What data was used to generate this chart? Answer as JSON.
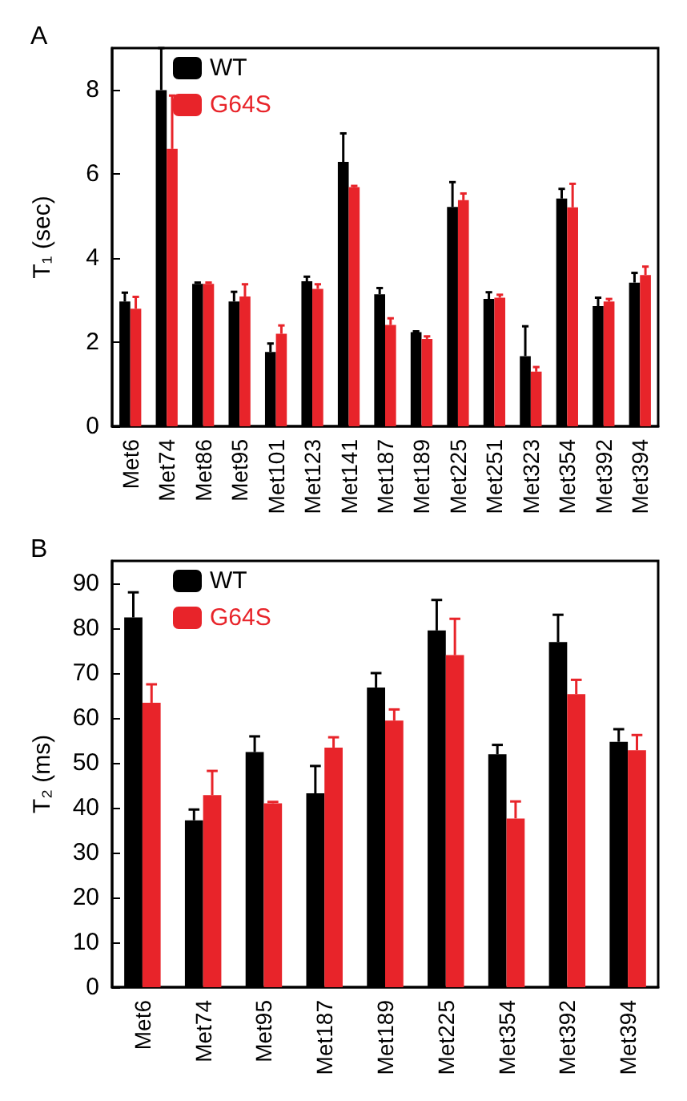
{
  "chart_data": [
    {
      "type": "bar",
      "title": "A",
      "ylabel": "T₁ (sec)",
      "categories": [
        "Met6",
        "Met74",
        "Met86",
        "Met95",
        "Met101",
        "Met123",
        "Met141",
        "Met187",
        "Met189",
        "Met225",
        "Met251",
        "Met323",
        "Met354",
        "Met392",
        "Met394"
      ],
      "series": [
        {
          "name": "WT",
          "color": "#000000",
          "values": [
            2.97,
            8.0,
            3.39,
            2.97,
            1.77,
            3.45,
            6.29,
            3.14,
            2.24,
            5.22,
            3.03,
            1.67,
            5.42,
            2.86,
            3.42
          ],
          "errors": [
            [
              2.97,
              3.18
            ],
            [
              8.0,
              9.0
            ],
            [
              3.39,
              3.42
            ],
            [
              2.97,
              3.2
            ],
            [
              1.77,
              1.97
            ],
            [
              3.45,
              3.56
            ],
            [
              6.29,
              6.97
            ],
            [
              3.14,
              3.29
            ],
            [
              2.24,
              2.26
            ],
            [
              5.22,
              5.81
            ],
            [
              3.03,
              3.19
            ],
            [
              1.67,
              2.38
            ],
            [
              5.42,
              5.65
            ],
            [
              2.86,
              3.06
            ],
            [
              3.42,
              3.65
            ]
          ]
        },
        {
          "name": "G64S",
          "color": "#e8242a",
          "values": [
            2.8,
            6.6,
            3.39,
            3.09,
            2.2,
            3.27,
            5.69,
            2.41,
            2.08,
            5.38,
            3.06,
            1.3,
            5.21,
            2.97,
            3.6
          ],
          "errors": [
            [
              2.8,
              3.08
            ],
            [
              6.6,
              7.87
            ],
            [
              3.39,
              3.42
            ],
            [
              3.09,
              3.38
            ],
            [
              2.2,
              2.4
            ],
            [
              3.27,
              3.38
            ],
            [
              5.69,
              5.72
            ],
            [
              2.41,
              2.57
            ],
            [
              2.08,
              2.14
            ],
            [
              5.38,
              5.54
            ],
            [
              3.06,
              3.13
            ],
            [
              1.3,
              1.41
            ],
            [
              5.21,
              5.77
            ],
            [
              2.97,
              3.03
            ],
            [
              3.6,
              3.8
            ]
          ]
        }
      ],
      "ylim": [
        0,
        9
      ],
      "yticks": [
        0,
        2,
        4,
        6,
        8
      ],
      "grid": false,
      "legend": "top left"
    },
    {
      "type": "bar",
      "title": "B",
      "ylabel": "T₂ (ms)",
      "categories": [
        "Met6",
        "Met74",
        "Met95",
        "Met187",
        "Met189",
        "Met225",
        "Met354",
        "Met392",
        "Met394"
      ],
      "series": [
        {
          "name": "WT",
          "color": "#000000",
          "values": [
            82.4,
            37.2,
            52.4,
            43.2,
            66.8,
            79.5,
            51.9,
            76.9,
            54.7
          ],
          "errors": [
            [
              82.4,
              88
            ],
            [
              37.2,
              39.6
            ],
            [
              52.4,
              55.9
            ],
            [
              43.2,
              49.3
            ],
            [
              66.8,
              70
            ],
            [
              79.5,
              86.3
            ],
            [
              51.9,
              54
            ],
            [
              76.9,
              83
            ],
            [
              54.7,
              57.5
            ]
          ]
        },
        {
          "name": "G64S",
          "color": "#e8242a",
          "values": [
            63.4,
            42.8,
            41,
            53.4,
            59.4,
            74,
            37.6,
            65.3,
            52.8
          ],
          "errors": [
            [
              63.4,
              67.5
            ],
            [
              42.8,
              48.2
            ],
            [
              41,
              41.3
            ],
            [
              53.4,
              55.7
            ],
            [
              59.4,
              61.9
            ],
            [
              74,
              82.1
            ],
            [
              37.6,
              41.4
            ],
            [
              65.3,
              68.5
            ],
            [
              52.8,
              56.2
            ]
          ]
        }
      ],
      "ylim": [
        0,
        95
      ],
      "yticks": [
        0,
        10,
        20,
        30,
        40,
        50,
        60,
        70,
        80,
        90
      ],
      "grid": false,
      "legend": "top left"
    }
  ]
}
